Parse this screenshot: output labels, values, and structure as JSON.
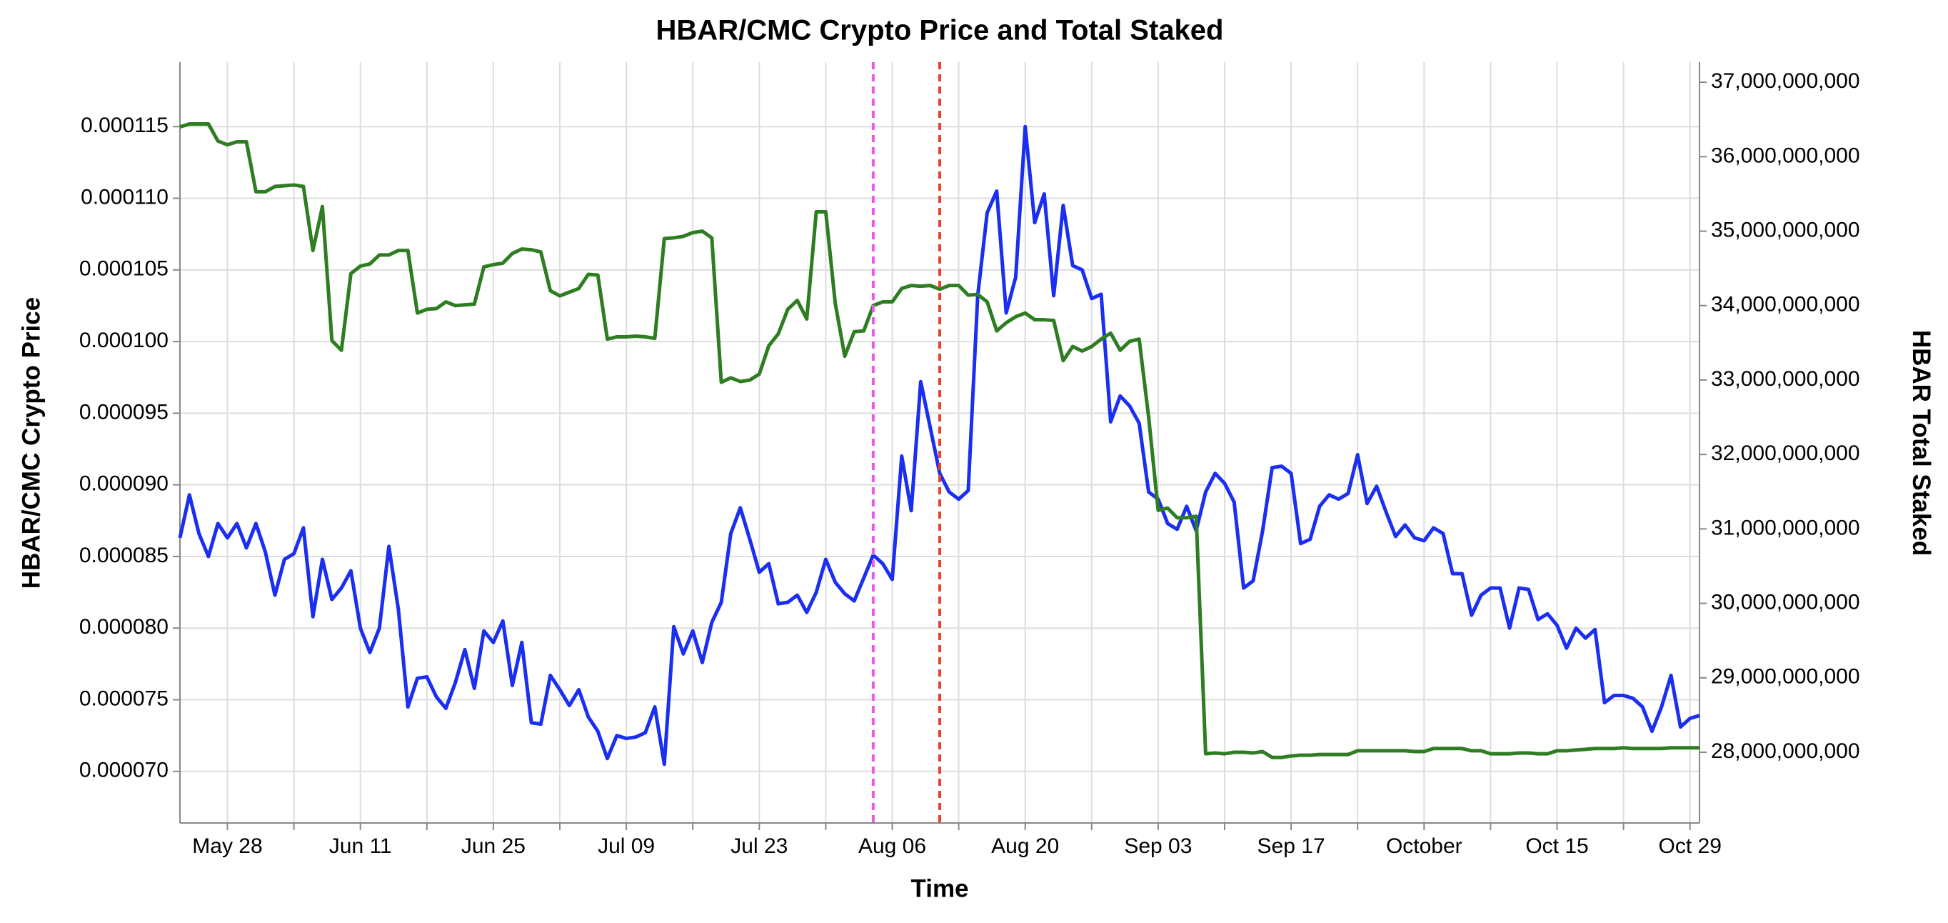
{
  "chart_data": {
    "type": "line",
    "title": "HBAR/CMC Crypto Price and Total Staked",
    "xlabel": "Time",
    "ylabel": "HBAR/CMC Crypto Price",
    "y2label": "HBAR Total Staked",
    "x": [
      "May 23",
      "May 24",
      "May 25",
      "May 26",
      "May 27",
      "May 28",
      "May 29",
      "May 30",
      "May 31",
      "Jun 01",
      "Jun 02",
      "Jun 03",
      "Jun 04",
      "Jun 05",
      "Jun 06",
      "Jun 07",
      "Jun 08",
      "Jun 09",
      "Jun 10",
      "Jun 11",
      "Jun 12",
      "Jun 13",
      "Jun 14",
      "Jun 15",
      "Jun 16",
      "Jun 17",
      "Jun 18",
      "Jun 19",
      "Jun 20",
      "Jun 21",
      "Jun 22",
      "Jun 23",
      "Jun 24",
      "Jun 25",
      "Jun 26",
      "Jun 27",
      "Jun 28",
      "Jun 29",
      "Jun 30",
      "Jul 01",
      "Jul 02",
      "Jul 03",
      "Jul 04",
      "Jul 05",
      "Jul 06",
      "Jul 07",
      "Jul 08",
      "Jul 09",
      "Jul 10",
      "Jul 11",
      "Jul 12",
      "Jul 13",
      "Jul 14",
      "Jul 15",
      "Jul 16",
      "Jul 17",
      "Jul 18",
      "Jul 19",
      "Jul 20",
      "Jul 21",
      "Jul 22",
      "Jul 23",
      "Jul 24",
      "Jul 25",
      "Jul 26",
      "Jul 27",
      "Jul 28",
      "Jul 29",
      "Jul 30",
      "Jul 31",
      "Aug 01",
      "Aug 02",
      "Aug 03",
      "Aug 04",
      "Aug 05",
      "Aug 06",
      "Aug 07",
      "Aug 08",
      "Aug 09",
      "Aug 10",
      "Aug 11",
      "Aug 12",
      "Aug 13",
      "Aug 14",
      "Aug 15",
      "Aug 16",
      "Aug 17",
      "Aug 18",
      "Aug 19",
      "Aug 20",
      "Aug 21",
      "Aug 22",
      "Aug 23",
      "Aug 24",
      "Aug 25",
      "Aug 26",
      "Aug 27",
      "Aug 28",
      "Aug 29",
      "Aug 30",
      "Aug 31",
      "Sep 01",
      "Sep 02",
      "Sep 03",
      "Sep 04",
      "Sep 05",
      "Sep 06",
      "Sep 07",
      "Sep 08",
      "Sep 09",
      "Sep 10",
      "Sep 11",
      "Sep 12",
      "Sep 13",
      "Sep 14",
      "Sep 15",
      "Sep 16",
      "Sep 17",
      "Sep 18",
      "Sep 19",
      "Sep 20",
      "Sep 21",
      "Sep 22",
      "Sep 23",
      "Sep 24",
      "Sep 25",
      "Sep 26",
      "Sep 27",
      "Sep 28",
      "Sep 29",
      "Sep 30",
      "Oct 01",
      "Oct 02",
      "Oct 03",
      "Oct 04",
      "Oct 05",
      "Oct 06",
      "Oct 07",
      "Oct 08",
      "Oct 09",
      "Oct 10",
      "Oct 11",
      "Oct 12",
      "Oct 13",
      "Oct 14",
      "Oct 15",
      "Oct 16",
      "Oct 17",
      "Oct 18",
      "Oct 19",
      "Oct 20",
      "Oct 21",
      "Oct 22",
      "Oct 23",
      "Oct 24",
      "Oct 25",
      "Oct 26",
      "Oct 27",
      "Oct 28",
      "Oct 29",
      "Oct 30"
    ],
    "series": [
      {
        "color": "#1a2ff0",
        "axis": "y",
        "values": [
          8.63e-05,
          8.93e-05,
          8.66e-05,
          8.5e-05,
          8.73e-05,
          8.63e-05,
          8.73e-05,
          8.56e-05,
          8.73e-05,
          8.53e-05,
          8.23e-05,
          8.48e-05,
          8.52e-05,
          8.7e-05,
          8.08e-05,
          8.48e-05,
          8.2e-05,
          8.28e-05,
          8.4e-05,
          8e-05,
          7.83e-05,
          8e-05,
          8.57e-05,
          8.13e-05,
          7.45e-05,
          7.65e-05,
          7.66e-05,
          7.52e-05,
          7.44e-05,
          7.62e-05,
          7.85e-05,
          7.58e-05,
          7.98e-05,
          7.9e-05,
          8.05e-05,
          7.6e-05,
          7.9e-05,
          7.34e-05,
          7.33e-05,
          7.67e-05,
          7.57e-05,
          7.46e-05,
          7.57e-05,
          7.38e-05,
          7.28e-05,
          7.09e-05,
          7.25e-05,
          7.23e-05,
          7.24e-05,
          7.27e-05,
          7.45e-05,
          7.05e-05,
          8.01e-05,
          7.82e-05,
          7.98e-05,
          7.76e-05,
          8.04e-05,
          8.18e-05,
          8.66e-05,
          8.84e-05,
          8.62e-05,
          8.39e-05,
          8.45e-05,
          8.17e-05,
          8.18e-05,
          8.23e-05,
          8.11e-05,
          8.25e-05,
          8.48e-05,
          8.32e-05,
          8.24e-05,
          8.19e-05,
          8.35e-05,
          8.51e-05,
          8.45e-05,
          8.34e-05,
          9.2e-05,
          8.82e-05,
          9.72e-05,
          9.4e-05,
          9.08e-05,
          8.95e-05,
          8.9e-05,
          8.96e-05,
          0.0001032,
          0.000109,
          0.0001105,
          0.000102,
          0.0001045,
          0.000115,
          0.0001083,
          0.0001103,
          0.0001032,
          0.0001095,
          0.0001053,
          0.000105,
          0.000103,
          0.0001033,
          9.44e-05,
          9.62e-05,
          9.55e-05,
          9.43e-05,
          8.95e-05,
          8.9e-05,
          8.73e-05,
          8.69e-05,
          8.85e-05,
          8.68e-05,
          8.95e-05,
          9.08e-05,
          9.01e-05,
          8.88e-05,
          8.28e-05,
          8.33e-05,
          8.68e-05,
          9.12e-05,
          9.13e-05,
          9.08e-05,
          8.59e-05,
          8.62e-05,
          8.85e-05,
          8.93e-05,
          8.9e-05,
          8.94e-05,
          9.21e-05,
          8.87e-05,
          8.99e-05,
          8.81e-05,
          8.64e-05,
          8.72e-05,
          8.63e-05,
          8.61e-05,
          8.7e-05,
          8.66e-05,
          8.38e-05,
          8.38e-05,
          8.09e-05,
          8.23e-05,
          8.28e-05,
          8.28e-05,
          8e-05,
          8.28e-05,
          8.27e-05,
          8.06e-05,
          8.1e-05,
          8.02e-05,
          7.86e-05,
          8e-05,
          7.93e-05,
          7.99e-05,
          7.48e-05,
          7.53e-05,
          7.53e-05,
          7.51e-05,
          7.45e-05,
          7.28e-05,
          7.45e-05,
          7.67e-05,
          7.31e-05,
          7.37e-05,
          7.39e-05
        ]
      },
      {
        "color": "#2f7d22",
        "axis": "y2",
        "values": [
          36400000000,
          36440000000,
          36440000000,
          36440000000,
          36210000000,
          36160000000,
          36200000000,
          36200000000,
          35530000000,
          35530000000,
          35600000000,
          35610000000,
          35620000000,
          35600000000,
          34740000000,
          35330000000,
          33530000000,
          33400000000,
          34430000000,
          34530000000,
          34560000000,
          34680000000,
          34680000000,
          34740000000,
          34740000000,
          33900000000,
          33950000000,
          33960000000,
          34050000000,
          34000000000,
          34010000000,
          34020000000,
          34520000000,
          34550000000,
          34570000000,
          34700000000,
          34760000000,
          34750000000,
          34720000000,
          34200000000,
          34130000000,
          34180000000,
          34230000000,
          34420000000,
          34410000000,
          33550000000,
          33580000000,
          33580000000,
          33590000000,
          33580000000,
          33560000000,
          34900000000,
          34910000000,
          34930000000,
          34980000000,
          35000000000,
          34910000000,
          32970000000,
          33030000000,
          32980000000,
          33000000000,
          33080000000,
          33460000000,
          33620000000,
          33950000000,
          34070000000,
          33820000000,
          35260000000,
          35260000000,
          34030000000,
          33320000000,
          33650000000,
          33660000000,
          34000000000,
          34050000000,
          34050000000,
          34230000000,
          34270000000,
          34260000000,
          34270000000,
          34220000000,
          34270000000,
          34270000000,
          34140000000,
          34150000000,
          34050000000,
          33660000000,
          33770000000,
          33850000000,
          33900000000,
          33810000000,
          33810000000,
          33800000000,
          33260000000,
          33450000000,
          33390000000,
          33450000000,
          33550000000,
          33630000000,
          33400000000,
          33520000000,
          33550000000,
          32500000000,
          31250000000,
          31280000000,
          31150000000,
          31150000000,
          31170000000,
          27980000000,
          27990000000,
          27980000000,
          28000000000,
          28000000000,
          27990000000,
          28010000000,
          27930000000,
          27930000000,
          27950000000,
          27960000000,
          27960000000,
          27970000000,
          27970000000,
          27970000000,
          27970000000,
          28020000000,
          28020000000,
          28020000000,
          28020000000,
          28020000000,
          28020000000,
          28010000000,
          28010000000,
          28050000000,
          28050000000,
          28050000000,
          28050000000,
          28020000000,
          28020000000,
          27980000000,
          27980000000,
          27980000000,
          27990000000,
          27990000000,
          27980000000,
          27980000000,
          28020000000,
          28020000000,
          28030000000,
          28040000000,
          28050000000,
          28050000000,
          28050000000,
          28060000000,
          28050000000,
          28050000000,
          28050000000,
          28050000000,
          28060000000,
          28060000000,
          28060000000,
          28060000000
        ]
      }
    ],
    "xlim": [
      "May 23",
      "Oct 30"
    ],
    "xticks": [
      "May 28",
      {
        "value": "Jun 04",
        "label": null
      },
      "Jun 11",
      {
        "value": "Jun 18",
        "label": null
      },
      "Jun 25",
      {
        "value": "Jul 02",
        "label": null
      },
      "Jul 09",
      {
        "value": "Jul 16",
        "label": null
      },
      "Jul 23",
      {
        "value": "Jul 30",
        "label": null
      },
      "Aug 06",
      {
        "value": "Aug 13",
        "label": null
      },
      "Aug 20",
      {
        "value": "Aug 27",
        "label": null
      },
      "Sep 03",
      {
        "value": "Sep 10",
        "label": null
      },
      "Sep 17",
      {
        "value": "Sep 24",
        "label": null
      },
      {
        "value": "Oct 01",
        "label": "October"
      },
      {
        "value": "Oct 08",
        "label": null
      },
      "Oct 15",
      {
        "value": "Oct 22",
        "label": null
      },
      "Oct 29"
    ],
    "ylim": [
      6.64e-05,
      0.0001195
    ],
    "yticks": [
      {
        "value": 7e-05,
        "label": "0.000070"
      },
      7.5e-05,
      {
        "value": 8e-05,
        "label": "0.000080"
      },
      8.5e-05,
      {
        "value": 9e-05,
        "label": "0.000090"
      },
      9.5e-05,
      {
        "value": 0.0001,
        "label": "0.000100"
      },
      0.000105,
      {
        "value": 0.00011,
        "label": "0.000110"
      },
      0.000115
    ],
    "y2lim": [
      27050000000,
      37270000000
    ],
    "y2ticks": [
      {
        "value": 28000000000,
        "label": "28,000,000,000"
      },
      {
        "value": 29000000000,
        "label": "29,000,000,000"
      },
      {
        "value": 30000000000,
        "label": "30,000,000,000"
      },
      {
        "value": 31000000000,
        "label": "31,000,000,000"
      },
      {
        "value": 32000000000,
        "label": "32,000,000,000"
      },
      {
        "value": 33000000000,
        "label": "33,000,000,000"
      },
      {
        "value": 34000000000,
        "label": "34,000,000,000"
      },
      {
        "value": 35000000000,
        "label": "35,000,000,000"
      },
      {
        "value": 36000000000,
        "label": "36,000,000,000"
      },
      {
        "value": 37000000000,
        "label": "37,000,000,000"
      }
    ],
    "vlines": [
      {
        "x": "Aug 04",
        "color": "#e85ce8"
      },
      {
        "x": "Aug 11",
        "color": "#e8412c"
      }
    ],
    "grid": true
  }
}
